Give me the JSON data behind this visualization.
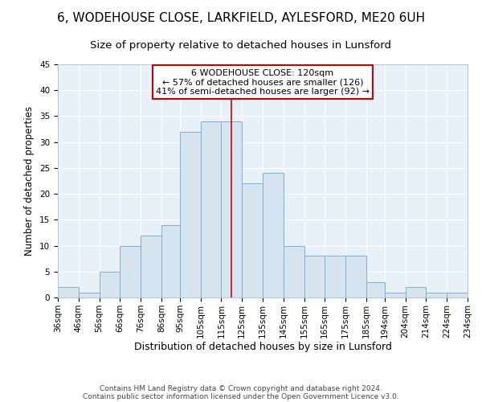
{
  "title1": "6, WODEHOUSE CLOSE, LARKFIELD, AYLESFORD, ME20 6UH",
  "title2": "Size of property relative to detached houses in Lunsford",
  "xlabel": "Distribution of detached houses by size in Lunsford",
  "ylabel": "Number of detached properties",
  "bin_labels": [
    "36sqm",
    "46sqm",
    "56sqm",
    "66sqm",
    "76sqm",
    "86sqm",
    "95sqm",
    "105sqm",
    "115sqm",
    "125sqm",
    "135sqm",
    "145sqm",
    "155sqm",
    "165sqm",
    "175sqm",
    "185sqm",
    "194sqm",
    "204sqm",
    "214sqm",
    "224sqm",
    "234sqm"
  ],
  "bin_edges": [
    36,
    46,
    56,
    66,
    76,
    86,
    95,
    105,
    115,
    125,
    135,
    145,
    155,
    165,
    175,
    185,
    194,
    204,
    214,
    224,
    234
  ],
  "bar_heights": [
    2,
    1,
    5,
    10,
    12,
    14,
    32,
    34,
    34,
    22,
    24,
    10,
    8,
    8,
    8,
    3,
    1,
    2,
    1,
    1
  ],
  "bar_color": "#d6e4f0",
  "bar_edge_color": "#7aafd4",
  "vline_x": 120,
  "vline_color": "#cc0000",
  "annotation_line1": "6 WODEHOUSE CLOSE: 120sqm",
  "annotation_line2": "← 57% of detached houses are smaller (126)",
  "annotation_line3": "41% of semi-detached houses are larger (92) →",
  "annotation_box_edge": "#cc0000",
  "footer1": "Contains HM Land Registry data © Crown copyright and database right 2024.",
  "footer2": "Contains public sector information licensed under the Open Government Licence v3.0.",
  "ylim": [
    0,
    45
  ],
  "yticks": [
    0,
    5,
    10,
    15,
    20,
    25,
    30,
    35,
    40,
    45
  ],
  "plot_bg_color": "#e8f0f8",
  "title1_fontsize": 11,
  "title2_fontsize": 9.5,
  "xlabel_fontsize": 9,
  "ylabel_fontsize": 8.5,
  "tick_fontsize": 7.5,
  "annot_fontsize": 8,
  "footer_fontsize": 6.5
}
